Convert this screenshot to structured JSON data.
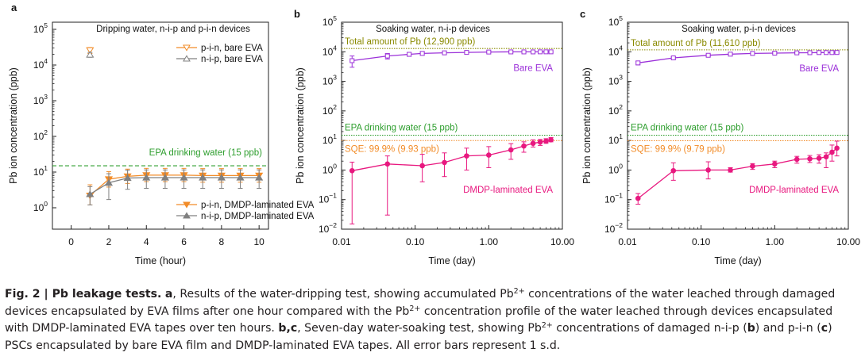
{
  "figure": {
    "caption": {
      "label": "Fig. 2 | Pb leakage tests.",
      "panel_a": "a",
      "part1": ", Results of the water-dripping test, showing accumulated Pb",
      "sup1": "2+",
      "part2": " concentrations of the water leached through damaged devices encapsulated by EVA films after one hour compared with the Pb",
      "sup2": "2+",
      "part3": " concentration profile of the water leached through devices encapsulated with DMDP-laminated EVA tapes over ten hours. ",
      "panels_bc": "b,c",
      "part4": ", Seven-day water-soaking test, showing Pb",
      "sup3": "2+",
      "part5": " concentrations of damaged n-i-p (",
      "b_letter": "b",
      "part6": ") and p-i-n (",
      "c_letter": "c",
      "part7": ") PSCs encapsulated by bare EVA film and DMDP-laminated EVA tapes. All error bars represent 1 s.d."
    }
  },
  "chart_data": [
    {
      "panel": "a",
      "type": "line",
      "title": "Dripping water, n-i-p and p-i-n devices",
      "xlabel": "Time (hour)",
      "ylabel": "Pb ion concentration (ppb)",
      "xlim": [
        -1,
        10.5
      ],
      "ylim_log10": [
        -0.6,
        5.2
      ],
      "y_scale": "log",
      "x_ticks": [
        0,
        2,
        4,
        6,
        8,
        10
      ],
      "x_tick_labels": [
        "0",
        "2",
        "4",
        "6",
        "8",
        "10"
      ],
      "y_ticks": [
        1,
        10,
        100,
        1000,
        10000,
        100000
      ],
      "y_tick_labels": [
        [
          "10",
          "0"
        ],
        [
          "10",
          "1"
        ],
        [
          "10",
          "2"
        ],
        [
          "10",
          "3"
        ],
        [
          "10",
          "4"
        ],
        [
          "10",
          "5"
        ]
      ],
      "reference_lines": [
        {
          "label": "EPA drinking water (15 ppb)",
          "value": 15,
          "color": "#2e9e2e",
          "style": "dashed"
        }
      ],
      "series": [
        {
          "name": "p-i-n, bare EVA",
          "color": "#f28c28",
          "marker": "tri-down-open",
          "x": [
            1
          ],
          "y": [
            26000
          ],
          "err_lo": [
            5000
          ],
          "err_hi": [
            5000
          ]
        },
        {
          "name": "n-i-p, bare EVA",
          "color": "#808080",
          "marker": "tri-up-open",
          "x": [
            1
          ],
          "y": [
            19500
          ],
          "err_lo": [
            3000
          ],
          "err_hi": [
            3000
          ]
        },
        {
          "name": "p-i-n, DMDP-laminated EVA",
          "color": "#f28c28",
          "marker": "tri-down",
          "x": [
            1,
            2,
            3,
            4,
            5,
            6,
            7,
            8,
            9,
            10
          ],
          "y": [
            2.2,
            6.3,
            7.6,
            8.2,
            8.2,
            8.2,
            8.0,
            8.0,
            8.0,
            8.0
          ],
          "err_lo": [
            1.0,
            2.5,
            2.8,
            2.8,
            2.8,
            2.8,
            2.8,
            2.8,
            2.8,
            2.8
          ],
          "err_hi": [
            2.2,
            4.0,
            4.5,
            4.5,
            4.5,
            4.5,
            4.5,
            4.5,
            4.5,
            4.5
          ]
        },
        {
          "name": "n-i-p, DMDP-laminated EVA",
          "color": "#808080",
          "marker": "tri-up",
          "x": [
            1,
            2,
            3,
            4,
            5,
            6,
            7,
            8,
            9,
            10
          ],
          "y": [
            2.4,
            5.0,
            6.8,
            7.0,
            7.0,
            7.0,
            7.0,
            7.0,
            7.0,
            7.0
          ],
          "err_lo": [
            1.2,
            3.3,
            3.5,
            3.5,
            3.5,
            3.5,
            3.5,
            3.5,
            3.5,
            3.5
          ],
          "err_hi": [
            1.5,
            4.0,
            4.5,
            4.5,
            4.5,
            4.5,
            4.5,
            4.5,
            4.5,
            4.5
          ]
        }
      ],
      "legend_top": [
        "p-i-n, bare EVA",
        "n-i-p, bare EVA"
      ],
      "legend_bottom": [
        "p-i-n, DMDP-laminated EVA",
        "n-i-p, DMDP-laminated EVA"
      ]
    },
    {
      "panel": "b",
      "type": "line",
      "title": "Soaking water, n-i-p devices",
      "xlabel": "Time (day)",
      "ylabel": "Pb ion concentration (ppb)",
      "x_scale": "log",
      "y_scale": "log",
      "xlim": [
        0.01,
        10
      ],
      "ylim": [
        0.01,
        100000
      ],
      "x_ticks": [
        0.01,
        0.1,
        1,
        10
      ],
      "x_tick_labels": [
        "0.01",
        "0.10",
        "1.00",
        "10.00"
      ],
      "y_ticks": [
        0.01,
        0.1,
        1,
        10,
        100,
        1000,
        10000,
        100000
      ],
      "y_tick_labels": [
        [
          "10",
          "−2"
        ],
        [
          "10",
          "−1"
        ],
        [
          "10",
          "0"
        ],
        [
          "10",
          "1"
        ],
        [
          "10",
          "2"
        ],
        [
          "10",
          "3"
        ],
        [
          "10",
          "4"
        ],
        [
          "10",
          "5"
        ]
      ],
      "reference_lines": [
        {
          "label": "Total amount of Pb (12,900 ppb)",
          "value": 12900,
          "color": "#8a8a00",
          "style": "dotted"
        },
        {
          "label": "EPA drinking water (15 ppb)",
          "value": 15,
          "color": "#2e9e2e",
          "style": "dotted"
        },
        {
          "label": "SQE: 99.9% (9.93 ppb)",
          "value": 9.93,
          "color": "#f28c28",
          "style": "dotted"
        }
      ],
      "series": [
        {
          "name": "Bare EVA",
          "color": "#9b30d9",
          "marker": "square-open",
          "x": [
            0.0139,
            0.042,
            0.083,
            0.125,
            0.25,
            0.5,
            1,
            2,
            3,
            4,
            5,
            6,
            7
          ],
          "y": [
            5000,
            7200,
            8200,
            8800,
            9200,
            9500,
            9800,
            9900,
            9900,
            9900,
            9950,
            9950,
            9950
          ],
          "err_lo": [
            2000,
            1500,
            1200,
            1000,
            800,
            700,
            600,
            500,
            500,
            500,
            500,
            500,
            500
          ],
          "err_hi": [
            2200,
            1500,
            1200,
            1000,
            800,
            700,
            600,
            500,
            500,
            500,
            500,
            500,
            500
          ]
        },
        {
          "name": "DMDP-laminated EVA",
          "color": "#e8187f",
          "marker": "circle",
          "x": [
            0.0139,
            0.042,
            0.125,
            0.25,
            0.5,
            1,
            2,
            3,
            4,
            5,
            6,
            7
          ],
          "y": [
            0.95,
            1.6,
            1.4,
            1.8,
            3.0,
            3.2,
            4.8,
            6.5,
            8.0,
            8.8,
            9.5,
            10.5
          ],
          "err_lo": [
            0.935,
            1.57,
            1.0,
            1.2,
            2.0,
            2.0,
            2.5,
            2.5,
            2.0,
            2.0,
            1.5,
            1.5
          ],
          "err_hi": [
            0.9,
            1.4,
            2.0,
            2.0,
            2.5,
            3.0,
            3.0,
            2.5,
            2.5,
            2.0,
            2.0,
            2.0
          ]
        }
      ]
    },
    {
      "panel": "c",
      "type": "line",
      "title": "Soaking water, p-i-n devices",
      "xlabel": "Time (day)",
      "ylabel": "Pb ion concentration (ppb)",
      "x_scale": "log",
      "y_scale": "log",
      "xlim": [
        0.01,
        10
      ],
      "ylim": [
        0.01,
        100000
      ],
      "x_ticks": [
        0.01,
        0.1,
        1,
        10
      ],
      "x_tick_labels": [
        "0.01",
        "0.10",
        "1.00",
        "10.00"
      ],
      "y_ticks": [
        0.01,
        0.1,
        1,
        10,
        100,
        1000,
        10000,
        100000
      ],
      "y_tick_labels": [
        [
          "10",
          "−2"
        ],
        [
          "10",
          "−1"
        ],
        [
          "10",
          "0"
        ],
        [
          "10",
          "1"
        ],
        [
          "10",
          "2"
        ],
        [
          "10",
          "3"
        ],
        [
          "10",
          "4"
        ],
        [
          "10",
          "5"
        ]
      ],
      "reference_lines": [
        {
          "label": "Total amount of Pb (11,610 ppb)",
          "value": 11610,
          "color": "#8a8a00",
          "style": "dotted"
        },
        {
          "label": "EPA drinking water (15 ppb)",
          "value": 15,
          "color": "#2e9e2e",
          "style": "dotted"
        },
        {
          "label": "SQE: 99.9% (9.79 ppb)",
          "value": 9.79,
          "color": "#f28c28",
          "style": "dotted"
        }
      ],
      "series": [
        {
          "name": "Bare EVA",
          "color": "#9b30d9",
          "marker": "square-open",
          "x": [
            0.0139,
            0.042,
            0.125,
            0.25,
            0.5,
            1,
            2,
            3,
            4,
            5,
            6,
            7
          ],
          "y": [
            4200,
            6200,
            7600,
            8300,
            8800,
            9000,
            9200,
            9300,
            9400,
            9400,
            9400,
            9450
          ],
          "err_lo": [
            600,
            600,
            600,
            600,
            600,
            600,
            600,
            600,
            600,
            600,
            600,
            600
          ],
          "err_hi": [
            600,
            600,
            600,
            600,
            600,
            600,
            600,
            600,
            600,
            600,
            600,
            600
          ]
        },
        {
          "name": "DMDP-laminated EVA",
          "color": "#e8187f",
          "marker": "circle",
          "x": [
            0.0139,
            0.042,
            0.125,
            0.25,
            0.5,
            1,
            2,
            3,
            4,
            5,
            6,
            7
          ],
          "y": [
            0.11,
            0.95,
            1.0,
            1.0,
            1.35,
            1.6,
            2.3,
            2.4,
            2.5,
            2.8,
            4.0,
            5.5
          ],
          "err_lo": [
            0.04,
            0.5,
            0.5,
            0.15,
            0.3,
            0.4,
            0.6,
            0.6,
            0.8,
            1.6,
            2.0,
            2.5
          ],
          "err_hi": [
            0.05,
            0.8,
            0.9,
            0.2,
            0.3,
            0.4,
            0.6,
            0.7,
            0.8,
            1.0,
            3.0,
            4.0
          ]
        }
      ]
    }
  ]
}
